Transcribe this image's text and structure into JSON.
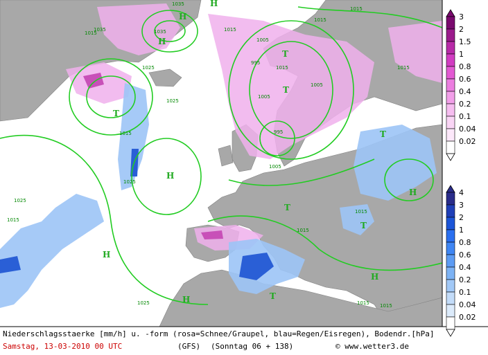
{
  "caption": {
    "line1": "Niederschlagsstaerke [mm/h] u. -form (rosa=Schnee/Graupel, blau=Regen/Eisregen), Bodendr.[hPa]",
    "date": "Samstag, 13-03-2010  00 UTC",
    "model": "(GFS)",
    "forecast": "(Sonntag 06 + 138)",
    "copyright": "© www.wetter3.de"
  },
  "legend": {
    "snow": {
      "title": "Schnee/Graupel",
      "values": [
        "3",
        "2",
        "1.5",
        "1",
        "0.8",
        "0.6",
        "0.4",
        "0.2",
        "0.1",
        "0.04",
        "0.02"
      ],
      "colors": [
        "#7a0a6e",
        "#9b1a8c",
        "#b82aa8",
        "#d23cc2",
        "#e35ad3",
        "#ec7ee0",
        "#f29fe9",
        "#f6bdf0",
        "#f9d5f5",
        "#fce8fa",
        "#ffffff"
      ]
    },
    "rain": {
      "title": "Regen/Eisregen",
      "values": [
        "4",
        "3",
        "2",
        "1",
        "0.8",
        "0.6",
        "0.4",
        "0.2",
        "0.1",
        "0.04",
        "0.02"
      ],
      "colors": [
        "#2a2c8a",
        "#1f3fb8",
        "#1c55d8",
        "#2a6ff0",
        "#3f86f4",
        "#5d9cf4",
        "#7db3f5",
        "#a2c9f7",
        "#c3dcf9",
        "#dcebfb",
        "#ffffff"
      ]
    }
  },
  "pressure_labels": [
    "1035",
    "1035",
    "1035",
    "1015",
    "1015",
    "1015",
    "1015",
    "1025",
    "1025",
    "1025",
    "1025",
    "1025",
    "1015",
    "1015",
    "1015",
    "1015",
    "1015",
    "1015",
    "1015",
    "1005",
    "1005",
    "995",
    "995",
    "1005",
    "1005",
    "1015"
  ],
  "centers": [
    "H",
    "H",
    "T",
    "T",
    "T",
    "H",
    "H",
    "T",
    "T",
    "T",
    "H",
    "H",
    "H",
    "H",
    "T"
  ],
  "colors": {
    "sea": "#ffffff",
    "land": "#a8a8a8",
    "isobar": "#22cc22",
    "snow_precip": "#f0b0ec",
    "rain_precip": "#6aa0ee",
    "date_text": "#cc0000"
  }
}
